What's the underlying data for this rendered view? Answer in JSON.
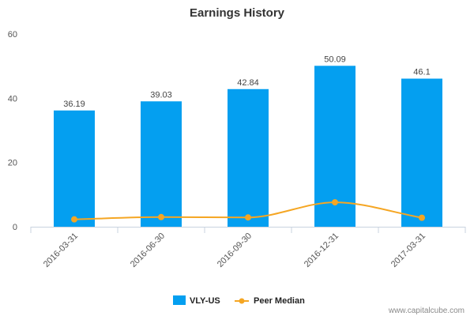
{
  "chart_data": {
    "type": "bar",
    "title": "Earnings History",
    "categories": [
      "2016-03-31",
      "2016-06-30",
      "2016-09-30",
      "2016-12-31",
      "2017-03-31"
    ],
    "series": [
      {
        "name": "VLY-US",
        "type": "bar",
        "color": "#049ff0",
        "values": [
          36.19,
          39.03,
          42.84,
          50.09,
          46.1
        ],
        "labels": [
          "36.19",
          "39.03",
          "42.84",
          "50.09",
          "46.1"
        ]
      },
      {
        "name": "Peer Median",
        "type": "line",
        "color": "#f5a623",
        "values": [
          2.3,
          3.0,
          2.9,
          7.6,
          2.8
        ]
      }
    ],
    "yticks": [
      "0",
      "20",
      "40",
      "60"
    ],
    "ylim": [
      0,
      60
    ],
    "grid": false,
    "legend": "bottom-center"
  },
  "credit": "www.capitalcube.com"
}
